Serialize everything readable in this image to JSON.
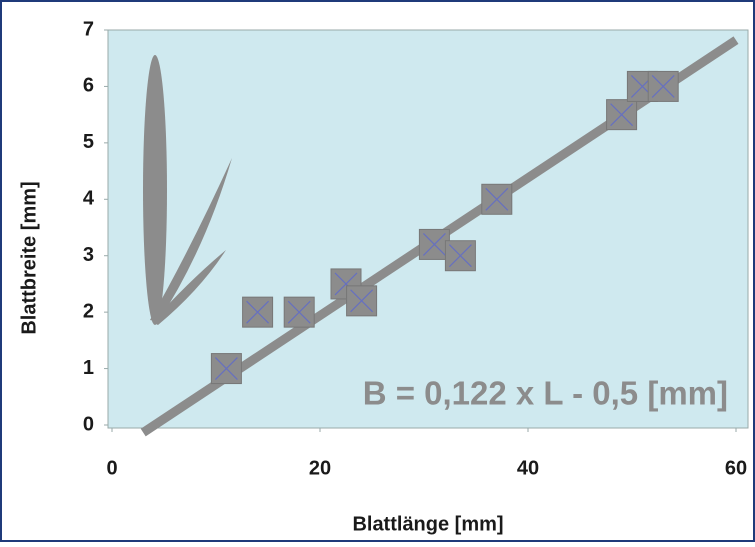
{
  "chart_data": {
    "type": "scatter",
    "x_label": "Blattlänge [mm]",
    "y_label": "Blattbreite [mm]",
    "annotation": "B = 0,122 x L - 0,5 [mm]",
    "x": [
      11,
      14,
      18,
      22.5,
      24,
      31,
      33.5,
      37,
      49,
      51,
      53
    ],
    "values": [
      1,
      2,
      2,
      2.5,
      2.2,
      3.2,
      3,
      4,
      5.5,
      6,
      6
    ],
    "color": "#8c8c8c",
    "trendline": {
      "slope": 0.122,
      "intercept": -0.5,
      "x": [
        3,
        60
      ],
      "color": "#8c8c8c"
    },
    "xlim": [
      0,
      61.3
    ],
    "xticks": [
      0,
      20,
      40,
      60
    ],
    "ylim": [
      0,
      7
    ],
    "yticks": [
      0,
      1,
      2,
      3,
      4,
      5,
      6,
      7
    ]
  }
}
